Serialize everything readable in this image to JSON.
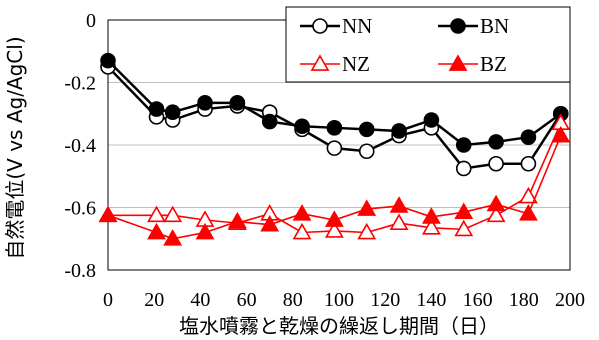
{
  "chart_data": {
    "type": "line",
    "xlabel": "塩水噴霧と乾燥の繰返し期間（日）",
    "ylabel": "自然電位(V vs Ag/AgCl)",
    "xlim": [
      0,
      200
    ],
    "ylim": [
      -0.8,
      0
    ],
    "xticks": [
      0,
      20,
      40,
      60,
      80,
      100,
      120,
      140,
      160,
      180,
      200
    ],
    "yticks": [
      0,
      -0.2,
      -0.4,
      -0.6,
      -0.8
    ],
    "ytick_labels": [
      "0",
      "-0.2",
      "-0.4",
      "-0.6",
      "-0.8"
    ],
    "grid": "horizontal",
    "legend_position": "top-right",
    "series": [
      {
        "name": "NN",
        "color": "#000000",
        "marker": "circle",
        "filled": false,
        "x": [
          0,
          21,
          28,
          42,
          56,
          70,
          84,
          98,
          112,
          126,
          140,
          154,
          168,
          182,
          196
        ],
        "y": [
          -0.15,
          -0.31,
          -0.32,
          -0.285,
          -0.275,
          -0.295,
          -0.35,
          -0.41,
          -0.42,
          -0.37,
          -0.345,
          -0.475,
          -0.46,
          -0.46,
          -0.3
        ]
      },
      {
        "name": "BN",
        "color": "#000000",
        "marker": "circle",
        "filled": true,
        "x": [
          0,
          21,
          28,
          42,
          56,
          70,
          84,
          98,
          112,
          126,
          140,
          154,
          168,
          182,
          196
        ],
        "y": [
          -0.13,
          -0.285,
          -0.295,
          -0.265,
          -0.265,
          -0.325,
          -0.34,
          -0.345,
          -0.35,
          -0.355,
          -0.32,
          -0.4,
          -0.39,
          -0.375,
          -0.3
        ]
      },
      {
        "name": "NZ",
        "color": "#ff0000",
        "marker": "triangle",
        "filled": false,
        "x": [
          0,
          21,
          28,
          42,
          56,
          70,
          84,
          98,
          112,
          126,
          140,
          154,
          168,
          182,
          196
        ],
        "y": [
          -0.625,
          -0.625,
          -0.625,
          -0.64,
          -0.65,
          -0.62,
          -0.68,
          -0.675,
          -0.68,
          -0.65,
          -0.665,
          -0.67,
          -0.625,
          -0.565,
          -0.33
        ]
      },
      {
        "name": "BZ",
        "color": "#ff0000",
        "marker": "triangle",
        "filled": true,
        "x": [
          0,
          21,
          28,
          42,
          56,
          70,
          84,
          98,
          112,
          126,
          140,
          154,
          168,
          182,
          196
        ],
        "y": [
          -0.625,
          -0.68,
          -0.7,
          -0.68,
          -0.645,
          -0.655,
          -0.62,
          -0.64,
          -0.605,
          -0.595,
          -0.63,
          -0.615,
          -0.59,
          -0.62,
          -0.37
        ]
      }
    ]
  }
}
